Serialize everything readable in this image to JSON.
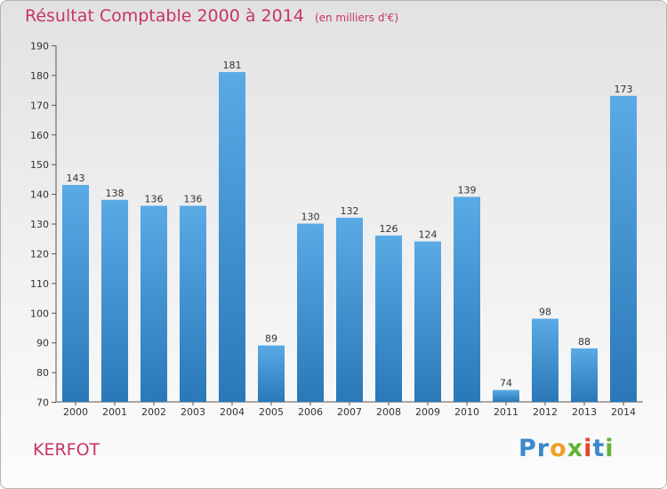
{
  "chart_data": {
    "type": "bar",
    "title": "Résultat Comptable 2000 à 2014",
    "unit_note": "(en milliers d'€)",
    "categories": [
      "2000",
      "2001",
      "2002",
      "2003",
      "2004",
      "2005",
      "2006",
      "2007",
      "2008",
      "2009",
      "2010",
      "2011",
      "2012",
      "2013",
      "2014"
    ],
    "values": [
      143,
      138,
      136,
      136,
      181,
      89,
      130,
      132,
      126,
      124,
      139,
      74,
      98,
      88,
      173
    ],
    "ylim": [
      70,
      190
    ],
    "yticks": [
      70,
      80,
      90,
      100,
      110,
      120,
      130,
      140,
      150,
      160,
      170,
      180,
      190
    ],
    "xlabel": "",
    "ylabel": "",
    "grid": false,
    "bar_color_top": "#5aaae6",
    "bar_color_bottom": "#2a78b8"
  },
  "commune": "KERFOT",
  "logo": {
    "letters": [
      {
        "char": "P",
        "color": "#3a88cc"
      },
      {
        "char": "r",
        "color": "#3a88cc"
      },
      {
        "char": "o",
        "color": "#f0a02a"
      },
      {
        "char": "x",
        "color": "#62b432"
      },
      {
        "char": "i",
        "color": "#e8452c"
      },
      {
        "char": "t",
        "color": "#3a88cc"
      },
      {
        "char": "i",
        "color": "#62b432"
      }
    ]
  }
}
